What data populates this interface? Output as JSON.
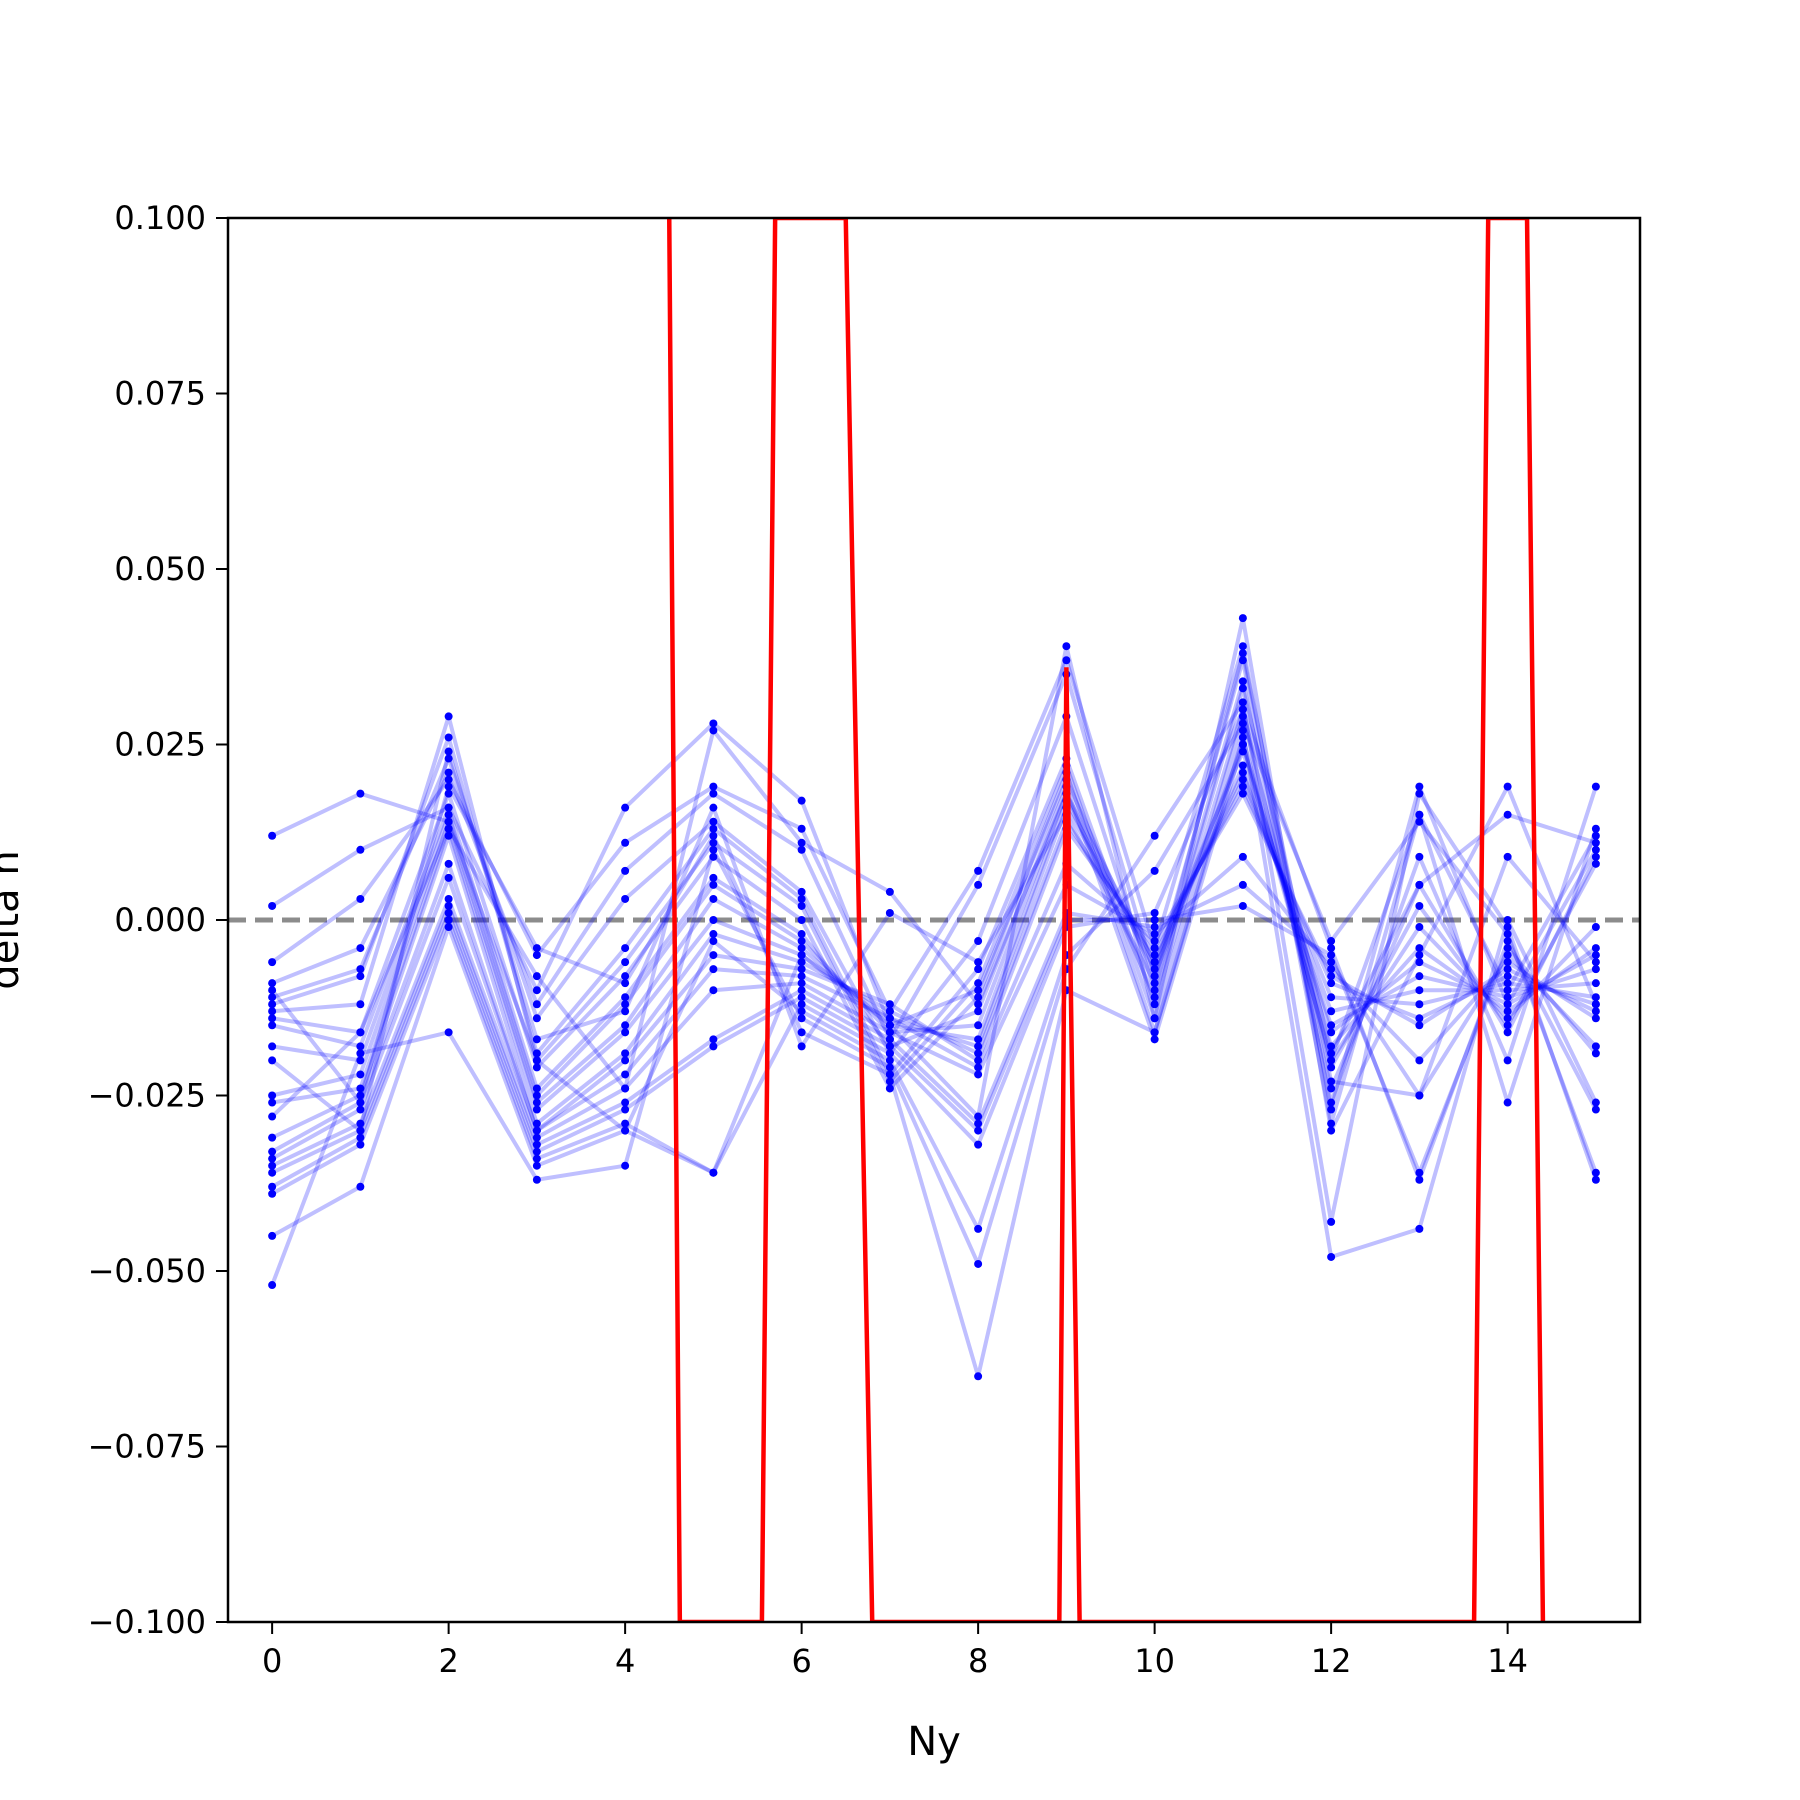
{
  "chart_data": {
    "type": "line",
    "xlabel": "Ny",
    "ylabel": "delta n",
    "xlim": [
      -0.5,
      15.5
    ],
    "ylim": [
      -0.1,
      0.1
    ],
    "xticks": [
      0,
      2,
      4,
      6,
      8,
      10,
      12,
      14
    ],
    "xtick_labels": [
      "0",
      "2",
      "4",
      "6",
      "8",
      "10",
      "12",
      "14"
    ],
    "yticks": [
      0.1,
      0.075,
      0.05,
      0.025,
      0.0,
      -0.025,
      -0.05,
      -0.075,
      -0.1
    ],
    "ytick_labels": [
      "0.100",
      "0.075",
      "0.050",
      "0.025",
      "0.000",
      "−0.025",
      "−0.050",
      "−0.075",
      "−0.100"
    ],
    "grid": false,
    "reference_line": {
      "y": 0.0,
      "style": "dashed",
      "color": "#808080"
    },
    "colors": {
      "series": "#0000ff",
      "mean": "#ff0000",
      "axes": "#000000"
    },
    "series": [
      {
        "values": [
          0.012,
          0.018,
          0.014,
          -0.02,
          -0.03,
          -0.036,
          -0.005,
          -0.015,
          -0.01,
          0.02,
          -0.008,
          0.025,
          -0.02,
          0.015,
          -0.01,
          0.012
        ]
      },
      {
        "values": [
          0.002,
          0.01,
          0.016,
          -0.01,
          0.016,
          0.028,
          0.017,
          -0.015,
          -0.028,
          0.039,
          -0.014,
          0.043,
          -0.03,
          -0.005,
          0.019,
          -0.012
        ]
      },
      {
        "values": [
          -0.006,
          0.003,
          0.02,
          -0.005,
          0.011,
          0.019,
          0.013,
          -0.013,
          0.007,
          0.037,
          -0.004,
          0.039,
          -0.027,
          0.019,
          -0.012,
          0.01
        ]
      },
      {
        "values": [
          -0.009,
          -0.004,
          0.021,
          -0.012,
          0.007,
          0.018,
          0.01,
          -0.017,
          0.005,
          0.035,
          -0.008,
          0.037,
          -0.029,
          0.015,
          -0.026,
          0.013
        ]
      },
      {
        "values": [
          -0.011,
          -0.007,
          0.023,
          -0.014,
          0.003,
          0.014,
          0.004,
          -0.019,
          -0.003,
          0.029,
          -0.01,
          0.034,
          -0.026,
          0.009,
          -0.02,
          0.019
        ]
      },
      {
        "values": [
          -0.012,
          -0.008,
          0.026,
          -0.019,
          -0.004,
          0.013,
          0.003,
          -0.022,
          -0.007,
          0.023,
          -0.012,
          0.03,
          -0.024,
          0.005,
          -0.016,
          0.009
        ]
      },
      {
        "values": [
          -0.013,
          -0.012,
          0.029,
          -0.02,
          -0.006,
          0.011,
          0.002,
          -0.023,
          -0.009,
          0.022,
          -0.014,
          0.029,
          -0.021,
          0.002,
          -0.015,
          0.008
        ]
      },
      {
        "values": [
          -0.014,
          -0.016,
          0.018,
          -0.021,
          -0.008,
          0.009,
          0.0,
          -0.024,
          -0.011,
          0.021,
          -0.016,
          0.026,
          -0.02,
          -0.001,
          -0.014,
          -0.001
        ]
      },
      {
        "values": [
          -0.015,
          -0.018,
          0.016,
          -0.024,
          -0.011,
          0.006,
          -0.002,
          -0.018,
          -0.013,
          0.019,
          -0.017,
          0.025,
          -0.018,
          -0.004,
          -0.013,
          -0.004
        ]
      },
      {
        "values": [
          -0.018,
          -0.02,
          0.015,
          -0.025,
          -0.012,
          0.005,
          -0.003,
          -0.016,
          -0.015,
          0.018,
          -0.006,
          0.024,
          -0.016,
          -0.006,
          -0.012,
          -0.005
        ]
      },
      {
        "values": [
          -0.025,
          -0.022,
          0.014,
          -0.026,
          -0.015,
          0.003,
          -0.004,
          -0.015,
          -0.017,
          0.017,
          -0.007,
          0.022,
          -0.015,
          -0.008,
          -0.011,
          -0.007
        ]
      },
      {
        "values": [
          -0.026,
          -0.024,
          0.013,
          -0.027,
          -0.016,
          0.0,
          -0.005,
          -0.014,
          -0.018,
          0.016,
          -0.006,
          0.021,
          -0.013,
          -0.01,
          -0.01,
          -0.009
        ]
      },
      {
        "values": [
          -0.031,
          -0.025,
          0.012,
          -0.029,
          -0.019,
          -0.002,
          -0.006,
          -0.013,
          -0.019,
          0.014,
          -0.005,
          0.02,
          -0.011,
          -0.012,
          -0.009,
          -0.011
        ]
      },
      {
        "values": [
          -0.033,
          -0.026,
          0.008,
          -0.03,
          -0.02,
          -0.005,
          -0.007,
          -0.012,
          -0.02,
          0.013,
          -0.004,
          0.019,
          -0.009,
          -0.014,
          -0.008,
          -0.012
        ]
      },
      {
        "values": [
          -0.034,
          -0.027,
          0.006,
          -0.03,
          -0.022,
          -0.007,
          -0.008,
          -0.014,
          -0.021,
          0.008,
          -0.003,
          0.018,
          -0.008,
          -0.015,
          -0.007,
          -0.013
        ]
      },
      {
        "values": [
          -0.035,
          -0.029,
          0.003,
          -0.031,
          -0.024,
          -0.01,
          -0.009,
          -0.016,
          -0.022,
          0.005,
          -0.002,
          0.009,
          -0.007,
          -0.02,
          -0.006,
          -0.014
        ]
      },
      {
        "values": [
          -0.036,
          -0.03,
          0.002,
          -0.032,
          -0.026,
          -0.017,
          -0.01,
          -0.017,
          -0.029,
          0.001,
          -0.001,
          0.005,
          -0.006,
          -0.025,
          -0.005,
          -0.018
        ]
      },
      {
        "values": [
          -0.038,
          -0.031,
          0.001,
          -0.033,
          -0.027,
          -0.018,
          -0.011,
          -0.018,
          -0.03,
          0.0,
          0.0,
          0.002,
          -0.005,
          -0.036,
          -0.004,
          -0.019
        ]
      },
      {
        "values": [
          -0.039,
          -0.032,
          0.0,
          -0.034,
          -0.029,
          -0.036,
          -0.012,
          -0.019,
          -0.032,
          -0.001,
          0.001,
          0.03,
          -0.004,
          -0.037,
          -0.003,
          -0.027
        ]
      },
      {
        "values": [
          -0.045,
          -0.038,
          -0.001,
          -0.035,
          -0.03,
          -0.003,
          -0.013,
          -0.02,
          -0.044,
          -0.005,
          0.007,
          0.028,
          -0.003,
          0.014,
          -0.002,
          -0.036
        ]
      },
      {
        "values": [
          -0.052,
          -0.019,
          -0.016,
          -0.037,
          -0.035,
          0.01,
          -0.014,
          -0.021,
          -0.049,
          -0.007,
          0.012,
          0.031,
          -0.043,
          0.018,
          -0.001,
          -0.037
        ]
      },
      {
        "values": [
          -0.01,
          -0.026,
          0.019,
          -0.004,
          -0.009,
          0.012,
          -0.016,
          -0.022,
          -0.065,
          -0.01,
          -0.016,
          0.027,
          -0.048,
          -0.044,
          0.0,
          -0.026
        ]
      },
      {
        "values": [
          -0.02,
          -0.03,
          0.024,
          -0.017,
          -0.013,
          0.016,
          -0.018,
          0.001,
          -0.006,
          0.015,
          -0.009,
          0.038,
          -0.023,
          -0.025,
          0.009,
          -0.006
        ]
      },
      {
        "values": [
          -0.028,
          -0.016,
          0.013,
          -0.008,
          -0.024,
          0.027,
          0.011,
          0.004,
          -0.012,
          0.018,
          -0.011,
          0.033,
          -0.019,
          0.005,
          0.015,
          0.011
        ]
      }
    ],
    "mean_series": {
      "x": [
        4.5,
        4.62,
        5.55,
        5.7,
        6.5,
        6.8,
        8.92,
        9.0,
        9.15,
        13.62,
        13.78,
        14.22,
        14.4
      ],
      "values": [
        0.1,
        -0.1,
        -0.1,
        0.1,
        0.1,
        -0.1,
        -0.1,
        0.036,
        -0.1,
        -0.1,
        0.1,
        0.1,
        -0.1
      ]
    }
  }
}
